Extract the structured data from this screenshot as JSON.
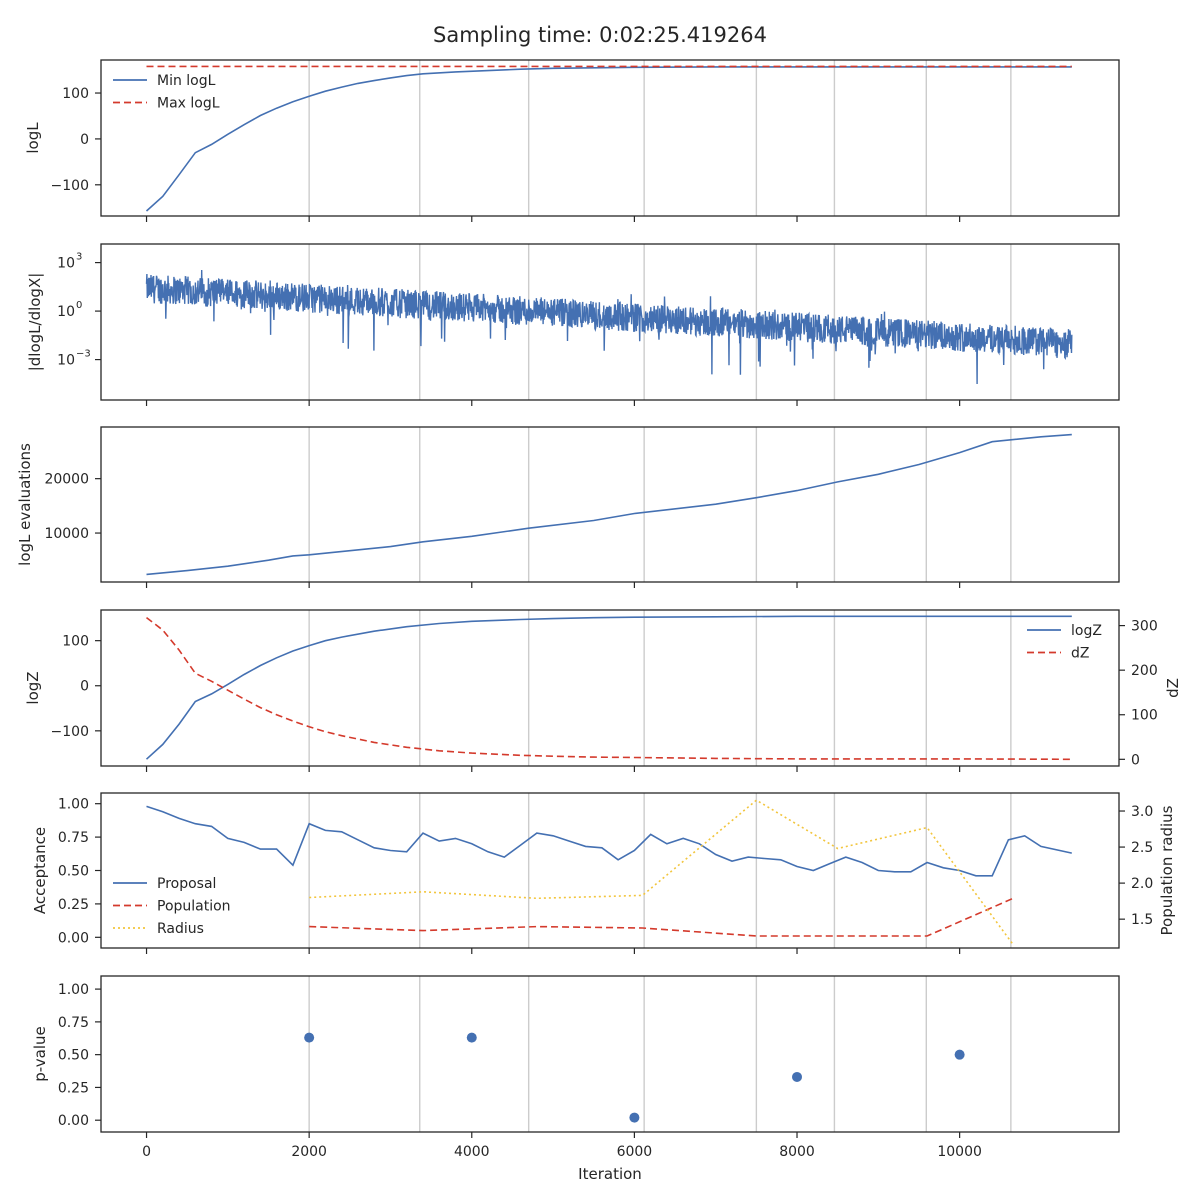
{
  "figure": {
    "title": "Sampling time: 0:02:25.419264"
  },
  "colors": {
    "blue": "#4470b2",
    "red": "#d43a2c",
    "yellow": "#f2c53d",
    "grid": "#cccccc",
    "frame": "#262626"
  },
  "chart_data": [
    {
      "id": "logl",
      "type": "line",
      "ylabel": "logL",
      "xlim": [
        -560,
        11960
      ],
      "ylim": [
        -168,
        172
      ],
      "yticks": [
        -100,
        0,
        100
      ],
      "ytick_labels": [
        "−100",
        "0",
        "100"
      ],
      "legend": {
        "placement": "upper-left"
      },
      "series": [
        {
          "name": "Min logL",
          "color": "blue",
          "dash": "solid",
          "x": [
            0,
            200,
            400,
            600,
            800,
            1000,
            1200,
            1400,
            1600,
            1800,
            2000,
            2200,
            2400,
            2600,
            2800,
            3000,
            3200,
            3400,
            3800,
            4200,
            4600,
            5000,
            5500,
            6000,
            7000,
            8000,
            9000,
            10000,
            11380
          ],
          "y": [
            -157,
            -125,
            -78,
            -30,
            -12,
            10,
            31,
            51,
            67,
            81,
            93,
            104,
            113,
            121,
            127,
            133,
            138,
            142,
            146,
            149,
            152,
            154,
            155,
            156,
            157,
            157,
            157,
            157,
            157
          ]
        },
        {
          "name": "Max logL",
          "color": "red",
          "dash": "dashed",
          "x": [
            0,
            11380
          ],
          "y": [
            158,
            158
          ]
        }
      ]
    },
    {
      "id": "dlogl",
      "type": "line",
      "ylabel": "|dlogL/dlogX|",
      "scale": "log",
      "xlim": [
        -560,
        11960
      ],
      "ylim_exp": [
        -5.5,
        4.15
      ],
      "yticks_exp": [
        -3,
        0,
        3
      ],
      "ytick_labels": [
        "10",
        "10",
        "10"
      ],
      "ytick_exponents": [
        "−3",
        "0",
        "3"
      ],
      "noisy_series": {
        "color": "blue",
        "x_range": [
          0,
          11380
        ],
        "center_start_exp": 1.4,
        "center_end_exp": -2.0,
        "spread_exp": 0.9,
        "n": 2500
      }
    },
    {
      "id": "evals",
      "type": "line",
      "ylabel": "logL evaluations",
      "xlim": [
        -560,
        11960
      ],
      "ylim": [
        1000,
        29500
      ],
      "yticks": [
        10000,
        20000
      ],
      "ytick_labels": [
        "10000",
        "20000"
      ],
      "series": [
        {
          "name": "",
          "color": "blue",
          "dash": "solid",
          "x": [
            0,
            500,
            1000,
            1500,
            1800,
            2000,
            3000,
            3400,
            4000,
            4700,
            5500,
            6000,
            7000,
            7500,
            8000,
            8500,
            9000,
            9500,
            10000,
            10400,
            11000,
            11380
          ],
          "y": [
            2400,
            3100,
            3900,
            5000,
            5800,
            6000,
            7500,
            8400,
            9400,
            10900,
            12300,
            13600,
            15300,
            16500,
            17800,
            19400,
            20800,
            22600,
            24800,
            26800,
            27700,
            28100
          ]
        }
      ]
    },
    {
      "id": "logz",
      "type": "line",
      "ylabel": "logZ",
      "ylabel_right": "dZ",
      "xlim": [
        -560,
        11960
      ],
      "ylim": [
        -178,
        168
      ],
      "ylim_right": [
        -15,
        335
      ],
      "yticks": [
        -100,
        0,
        100
      ],
      "ytick_labels": [
        "−100",
        "0",
        "100"
      ],
      "yticks_right": [
        0,
        100,
        200,
        300
      ],
      "ytick_labels_right": [
        "0",
        "100",
        "200",
        "300"
      ],
      "legend": {
        "placement": "upper-right"
      },
      "series": [
        {
          "name": "logZ",
          "color": "blue",
          "dash": "solid",
          "axis": "left",
          "x": [
            0,
            200,
            400,
            600,
            800,
            1000,
            1200,
            1400,
            1600,
            1800,
            2000,
            2200,
            2400,
            2800,
            3200,
            3600,
            4000,
            4600,
            5000,
            5500,
            6000,
            7000,
            8000,
            9000,
            10000,
            11380
          ],
          "y": [
            -163,
            -130,
            -85,
            -35,
            -18,
            3,
            25,
            45,
            62,
            77,
            89,
            100,
            108,
            121,
            131,
            138,
            143,
            147,
            149,
            151,
            152,
            153,
            154,
            154,
            154,
            154
          ]
        },
        {
          "name": "dZ",
          "color": "red",
          "dash": "dashed",
          "axis": "right",
          "x": [
            0,
            200,
            400,
            600,
            800,
            1000,
            1200,
            1400,
            1600,
            1800,
            2000,
            2200,
            2400,
            2800,
            3200,
            3600,
            4000,
            4600,
            5000,
            5500,
            6000,
            7000,
            8000,
            9000,
            10000,
            11380
          ],
          "y": [
            318,
            290,
            245,
            193,
            175,
            155,
            135,
            116,
            100,
            86,
            73,
            62,
            53,
            38,
            27,
            19,
            14,
            9,
            7,
            5,
            4,
            2,
            1,
            1,
            1,
            0
          ]
        }
      ]
    },
    {
      "id": "accept",
      "type": "line",
      "ylabel": "Acceptance",
      "ylabel_right": "Population radius",
      "xlim": [
        -560,
        11960
      ],
      "ylim": [
        -0.08,
        1.08
      ],
      "ylim_right": [
        1.1,
        3.25
      ],
      "yticks": [
        0,
        0.25,
        0.5,
        0.75,
        1.0
      ],
      "ytick_labels": [
        "0.00",
        "0.25",
        "0.50",
        "0.75",
        "1.00"
      ],
      "yticks_right": [
        1.5,
        2.0,
        2.5,
        3.0
      ],
      "ytick_labels_right": [
        "1.5",
        "2.0",
        "2.5",
        "3.0"
      ],
      "legend": {
        "placement": "lower-left"
      },
      "series": [
        {
          "name": "Proposal",
          "color": "blue",
          "dash": "solid",
          "axis": "left",
          "x": [
            0,
            200,
            400,
            600,
            800,
            1000,
            1200,
            1400,
            1600,
            1800,
            2000,
            2200,
            2400,
            2600,
            2800,
            3000,
            3200,
            3400,
            3600,
            3800,
            4000,
            4200,
            4400,
            4600,
            4800,
            5000,
            5200,
            5400,
            5600,
            5800,
            6000,
            6200,
            6400,
            6600,
            6800,
            7000,
            7200,
            7400,
            7600,
            7800,
            8000,
            8200,
            8400,
            8600,
            8800,
            9000,
            9200,
            9400,
            9600,
            9800,
            10000,
            10200,
            10400,
            10600,
            10800,
            11000,
            11380
          ],
          "y": [
            0.98,
            0.94,
            0.89,
            0.85,
            0.83,
            0.74,
            0.71,
            0.66,
            0.66,
            0.54,
            0.85,
            0.8,
            0.79,
            0.73,
            0.67,
            0.65,
            0.64,
            0.78,
            0.72,
            0.74,
            0.7,
            0.64,
            0.6,
            0.69,
            0.78,
            0.76,
            0.72,
            0.68,
            0.67,
            0.58,
            0.65,
            0.77,
            0.7,
            0.74,
            0.7,
            0.62,
            0.57,
            0.6,
            0.59,
            0.58,
            0.53,
            0.5,
            0.55,
            0.6,
            0.56,
            0.5,
            0.49,
            0.49,
            0.56,
            0.52,
            0.5,
            0.46,
            0.46,
            0.73,
            0.76,
            0.68,
            0.63
          ]
        },
        {
          "name": "Population",
          "color": "red",
          "dash": "dashed",
          "axis": "left",
          "x": [
            2000,
            3400,
            4800,
            6100,
            7500,
            8500,
            9600,
            10650
          ],
          "y": [
            0.08,
            0.05,
            0.08,
            0.07,
            0.01,
            0.01,
            0.01,
            0.29
          ]
        },
        {
          "name": "Radius",
          "color": "yellow",
          "dash": "dotted",
          "axis": "right",
          "x": [
            2000,
            3400,
            4800,
            6100,
            7500,
            8500,
            9600,
            10650
          ],
          "y": [
            1.8,
            1.88,
            1.79,
            1.83,
            3.15,
            2.48,
            2.77,
            1.16
          ]
        }
      ]
    },
    {
      "id": "pvalue",
      "type": "scatter",
      "ylabel": "p-value",
      "xlabel": "Iteration",
      "xlim": [
        -560,
        11960
      ],
      "ylim": [
        -0.09,
        1.1
      ],
      "yticks": [
        0,
        0.25,
        0.5,
        0.75,
        1.0
      ],
      "ytick_labels": [
        "0.00",
        "0.25",
        "0.50",
        "0.75",
        "1.00"
      ],
      "xticks": [
        0,
        2000,
        4000,
        6000,
        8000,
        10000
      ],
      "xtick_labels": [
        "0",
        "2000",
        "4000",
        "6000",
        "8000",
        "10000"
      ],
      "series": [
        {
          "name": "",
          "color": "blue",
          "x": [
            2000,
            4000,
            6000,
            8000,
            10000
          ],
          "y": [
            0.63,
            0.63,
            0.02,
            0.33,
            0.5
          ]
        }
      ]
    }
  ],
  "shared": {
    "vlines": [
      2000,
      3360,
      4700,
      6120,
      7500,
      8460,
      9590,
      10630
    ],
    "xticks": [
      0,
      2000,
      4000,
      6000,
      8000,
      10000
    ]
  }
}
